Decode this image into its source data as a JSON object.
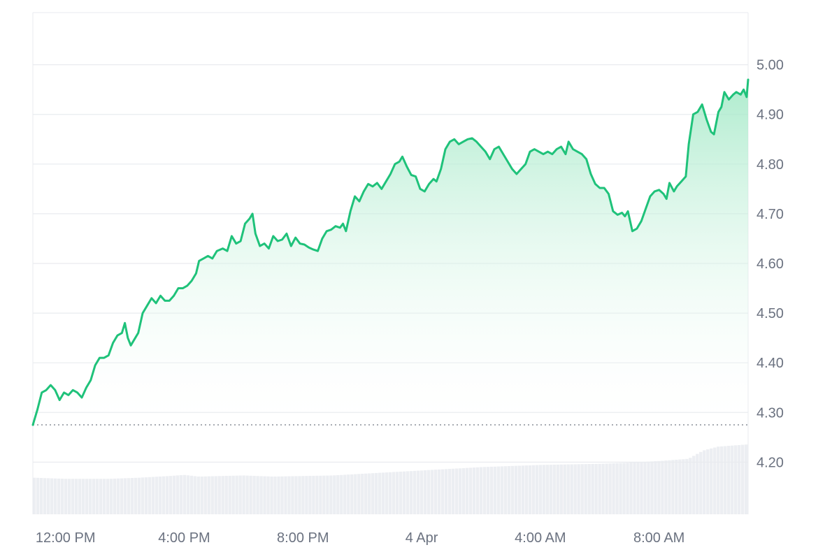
{
  "colors": {
    "line": "#1fc27a",
    "area_top": "#9fe8c4",
    "area_bottom": "#ffffff",
    "volume": "#eceef2",
    "grid": "#e9ebef",
    "baseline": "#8a8f98",
    "tick_text": "#6b7280"
  },
  "chart_data": {
    "type": "area",
    "title": "",
    "xlabel": "",
    "ylabel": "",
    "ylim": [
      4.095,
      5.105
    ],
    "y_ticks": [
      "5.00",
      "4.90",
      "4.80",
      "4.70",
      "4.60",
      "4.50",
      "4.40",
      "4.30",
      "4.20"
    ],
    "x_tick_labels": [
      "12:00 PM",
      "4:00 PM",
      "8:00 PM",
      "4 Apr",
      "4:00 AM",
      "8:00 AM"
    ],
    "x_range_hours": [
      10.9,
      34.6
    ],
    "x_tick_hours": [
      12,
      16,
      20,
      24,
      28,
      32
    ],
    "baseline_value": 4.275,
    "grid": true,
    "legend": "none",
    "series": [
      {
        "points": [
          [
            10.9,
            4.275
          ],
          [
            11.05,
            4.305
          ],
          [
            11.2,
            4.34
          ],
          [
            11.35,
            4.345
          ],
          [
            11.5,
            4.355
          ],
          [
            11.65,
            4.345
          ],
          [
            11.8,
            4.325
          ],
          [
            11.95,
            4.34
          ],
          [
            12.1,
            4.335
          ],
          [
            12.25,
            4.345
          ],
          [
            12.4,
            4.34
          ],
          [
            12.55,
            4.33
          ],
          [
            12.7,
            4.35
          ],
          [
            12.85,
            4.365
          ],
          [
            13.0,
            4.395
          ],
          [
            13.15,
            4.41
          ],
          [
            13.3,
            4.41
          ],
          [
            13.45,
            4.415
          ],
          [
            13.6,
            4.44
          ],
          [
            13.75,
            4.455
          ],
          [
            13.9,
            4.46
          ],
          [
            14.0,
            4.48
          ],
          [
            14.1,
            4.45
          ],
          [
            14.2,
            4.435
          ],
          [
            14.3,
            4.445
          ],
          [
            14.45,
            4.46
          ],
          [
            14.6,
            4.5
          ],
          [
            14.75,
            4.515
          ],
          [
            14.9,
            4.53
          ],
          [
            15.05,
            4.52
          ],
          [
            15.2,
            4.535
          ],
          [
            15.35,
            4.525
          ],
          [
            15.5,
            4.525
          ],
          [
            15.65,
            4.535
          ],
          [
            15.8,
            4.55
          ],
          [
            15.95,
            4.55
          ],
          [
            16.1,
            4.555
          ],
          [
            16.25,
            4.565
          ],
          [
            16.4,
            4.58
          ],
          [
            16.5,
            4.605
          ],
          [
            16.65,
            4.61
          ],
          [
            16.8,
            4.615
          ],
          [
            16.95,
            4.61
          ],
          [
            17.1,
            4.625
          ],
          [
            17.3,
            4.63
          ],
          [
            17.45,
            4.625
          ],
          [
            17.6,
            4.655
          ],
          [
            17.75,
            4.64
          ],
          [
            17.9,
            4.645
          ],
          [
            18.05,
            4.68
          ],
          [
            18.2,
            4.69
          ],
          [
            18.3,
            4.7
          ],
          [
            18.4,
            4.66
          ],
          [
            18.55,
            4.635
          ],
          [
            18.7,
            4.64
          ],
          [
            18.85,
            4.63
          ],
          [
            19.0,
            4.655
          ],
          [
            19.15,
            4.645
          ],
          [
            19.3,
            4.648
          ],
          [
            19.45,
            4.66
          ],
          [
            19.6,
            4.635
          ],
          [
            19.75,
            4.652
          ],
          [
            19.9,
            4.64
          ],
          [
            20.05,
            4.638
          ],
          [
            20.2,
            4.632
          ],
          [
            20.35,
            4.628
          ],
          [
            20.5,
            4.625
          ],
          [
            20.65,
            4.65
          ],
          [
            20.8,
            4.665
          ],
          [
            20.95,
            4.668
          ],
          [
            21.1,
            4.675
          ],
          [
            21.25,
            4.672
          ],
          [
            21.35,
            4.68
          ],
          [
            21.45,
            4.665
          ],
          [
            21.6,
            4.705
          ],
          [
            21.75,
            4.735
          ],
          [
            21.9,
            4.725
          ],
          [
            22.05,
            4.745
          ],
          [
            22.2,
            4.76
          ],
          [
            22.35,
            4.755
          ],
          [
            22.5,
            4.762
          ],
          [
            22.65,
            4.75
          ],
          [
            22.8,
            4.765
          ],
          [
            22.95,
            4.78
          ],
          [
            23.1,
            4.8
          ],
          [
            23.25,
            4.805
          ],
          [
            23.35,
            4.815
          ],
          [
            23.5,
            4.795
          ],
          [
            23.65,
            4.778
          ],
          [
            23.8,
            4.775
          ],
          [
            23.95,
            4.75
          ],
          [
            24.1,
            4.745
          ],
          [
            24.25,
            4.76
          ],
          [
            24.4,
            4.77
          ],
          [
            24.5,
            4.765
          ],
          [
            24.65,
            4.79
          ],
          [
            24.8,
            4.83
          ],
          [
            24.95,
            4.845
          ],
          [
            25.1,
            4.85
          ],
          [
            25.25,
            4.84
          ],
          [
            25.4,
            4.845
          ],
          [
            25.55,
            4.85
          ],
          [
            25.7,
            4.852
          ],
          [
            25.85,
            4.845
          ],
          [
            26.0,
            4.835
          ],
          [
            26.15,
            4.825
          ],
          [
            26.3,
            4.81
          ],
          [
            26.45,
            4.83
          ],
          [
            26.6,
            4.835
          ],
          [
            26.75,
            4.82
          ],
          [
            26.9,
            4.805
          ],
          [
            27.05,
            4.79
          ],
          [
            27.2,
            4.78
          ],
          [
            27.35,
            4.79
          ],
          [
            27.5,
            4.8
          ],
          [
            27.65,
            4.825
          ],
          [
            27.8,
            4.83
          ],
          [
            27.95,
            4.825
          ],
          [
            28.1,
            4.82
          ],
          [
            28.25,
            4.825
          ],
          [
            28.4,
            4.82
          ],
          [
            28.55,
            4.83
          ],
          [
            28.7,
            4.835
          ],
          [
            28.85,
            4.82
          ],
          [
            28.95,
            4.845
          ],
          [
            29.1,
            4.83
          ],
          [
            29.25,
            4.825
          ],
          [
            29.4,
            4.82
          ],
          [
            29.55,
            4.81
          ],
          [
            29.7,
            4.78
          ],
          [
            29.85,
            4.76
          ],
          [
            30.0,
            4.752
          ],
          [
            30.15,
            4.752
          ],
          [
            30.3,
            4.74
          ],
          [
            30.45,
            4.705
          ],
          [
            30.6,
            4.698
          ],
          [
            30.75,
            4.702
          ],
          [
            30.85,
            4.695
          ],
          [
            30.95,
            4.705
          ],
          [
            31.1,
            4.665
          ],
          [
            31.25,
            4.67
          ],
          [
            31.4,
            4.685
          ],
          [
            31.55,
            4.71
          ],
          [
            31.7,
            4.735
          ],
          [
            31.85,
            4.745
          ],
          [
            32.0,
            4.748
          ],
          [
            32.15,
            4.74
          ],
          [
            32.25,
            4.73
          ],
          [
            32.35,
            4.762
          ],
          [
            32.5,
            4.745
          ],
          [
            32.6,
            4.755
          ],
          [
            32.75,
            4.765
          ],
          [
            32.9,
            4.775
          ],
          [
            33.0,
            4.84
          ],
          [
            33.15,
            4.9
          ],
          [
            33.3,
            4.905
          ],
          [
            33.45,
            4.92
          ],
          [
            33.6,
            4.89
          ],
          [
            33.75,
            4.865
          ],
          [
            33.85,
            4.86
          ],
          [
            34.0,
            4.905
          ],
          [
            34.1,
            4.915
          ],
          [
            34.2,
            4.945
          ],
          [
            34.35,
            4.93
          ],
          [
            34.5,
            4.94
          ],
          [
            34.6,
            4.945
          ],
          [
            34.75,
            4.94
          ],
          [
            34.85,
            4.95
          ],
          [
            34.95,
            4.935
          ],
          [
            35.0,
            4.97
          ]
        ]
      }
    ],
    "volume_profile": [
      [
        10.9,
        0.66
      ],
      [
        12.0,
        0.64
      ],
      [
        13.5,
        0.64
      ],
      [
        14.5,
        0.66
      ],
      [
        15.5,
        0.69
      ],
      [
        16.0,
        0.71
      ],
      [
        16.5,
        0.68
      ],
      [
        18.0,
        0.7
      ],
      [
        19.0,
        0.68
      ],
      [
        21.0,
        0.7
      ],
      [
        22.0,
        0.73
      ],
      [
        23.0,
        0.76
      ],
      [
        24.0,
        0.79
      ],
      [
        25.0,
        0.82
      ],
      [
        26.0,
        0.85
      ],
      [
        27.0,
        0.87
      ],
      [
        28.0,
        0.89
      ],
      [
        29.0,
        0.9
      ],
      [
        30.0,
        0.91
      ],
      [
        31.0,
        0.93
      ],
      [
        32.0,
        0.96
      ],
      [
        33.0,
        1.0
      ],
      [
        33.5,
        1.15
      ],
      [
        34.0,
        1.22
      ],
      [
        35.0,
        1.26
      ]
    ]
  }
}
